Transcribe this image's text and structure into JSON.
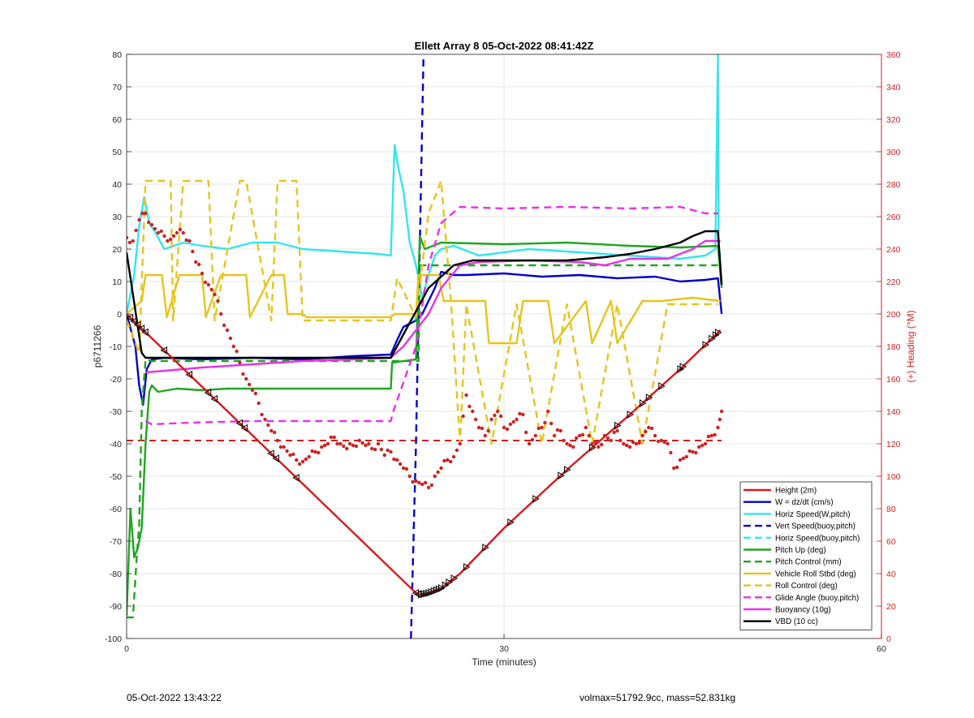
{
  "chart_data": {
    "type": "line",
    "title": "Ellett Array 8 05-Oct-2022 08:41:42Z",
    "xlabel": "Time (minutes)",
    "ylabel": "p6711266",
    "y2label": "(+) Heading (°M)",
    "xlim": [
      0,
      60
    ],
    "ylim": [
      -100,
      80
    ],
    "y2lim": [
      0,
      360
    ],
    "xticks": [
      0,
      30,
      60
    ],
    "yticks": [
      -100,
      -90,
      -80,
      -70,
      -60,
      -50,
      -40,
      -30,
      -20,
      -10,
      0,
      10,
      20,
      30,
      40,
      50,
      60,
      70,
      80
    ],
    "y2ticks": [
      0,
      20,
      40,
      60,
      80,
      100,
      120,
      140,
      160,
      180,
      200,
      220,
      240,
      260,
      280,
      300,
      320,
      340,
      360
    ],
    "grid": true,
    "legend_position": "bottom-right",
    "colors": {
      "red": "#d7191c",
      "blue": "#0000cc",
      "cyan": "#33e5f0",
      "green": "#1fa51f",
      "yellow": "#e6c41e",
      "magenta": "#e633e6",
      "black": "#000000",
      "heading": "#cc2222",
      "right_axis": "#cc2222"
    },
    "series": [
      {
        "name": "Height (2m)",
        "color": "red",
        "dash": false,
        "x": [
          0.0,
          23.0,
          23.3,
          24.0,
          25.0,
          26.5,
          30.0,
          35.0,
          40.0,
          44.0,
          47.2
        ],
        "y": [
          0,
          -86,
          -86.5,
          -86,
          -84.5,
          -80,
          -66,
          -48,
          -31,
          -17,
          -5
        ]
      },
      {
        "name": "W = dz/dt (cm/s)",
        "color": "blue",
        "dash": false,
        "x": [
          0.0,
          0.7,
          1.0,
          1.3,
          1.6,
          2.0,
          3.0,
          6.0,
          10.0,
          14.0,
          18.0,
          21.0,
          21.5,
          22.0,
          22.5,
          23.0,
          23.5,
          24.0,
          24.5,
          25.0,
          26.0,
          27.0,
          30.0,
          33.0,
          36.0,
          39.0,
          42.0,
          44.0,
          46.0,
          47.0,
          47.3
        ],
        "y": [
          0,
          -10,
          -22,
          -28,
          -17,
          -14,
          -13.5,
          -14,
          -13.5,
          -14,
          -13,
          -12.5,
          -8,
          -4,
          -3,
          -2,
          0,
          4,
          8,
          13,
          12,
          12,
          12.5,
          11.5,
          12,
          11,
          11.5,
          10,
          10.5,
          11,
          0
        ]
      },
      {
        "name": "Horiz Speed(W,pitch)",
        "color": "cyan",
        "dash": false,
        "x": [
          0.0,
          0.6,
          1.0,
          1.4,
          1.8,
          2.3,
          3.0,
          4.5,
          6.0,
          8.0,
          10.0,
          12.0,
          14.0,
          16.0,
          18.0,
          20.0,
          21.0,
          21.3,
          21.6,
          22.0,
          22.5,
          23.0,
          23.5,
          24.0,
          24.5,
          25.0,
          26.0,
          28.0,
          32.0,
          36.0,
          40.0,
          44.0,
          46.0,
          46.8,
          47.0,
          47.05,
          47.2
        ],
        "y": [
          0,
          12,
          27,
          36,
          28,
          25,
          20,
          22,
          21,
          20,
          22,
          22,
          20,
          19.5,
          19,
          18.5,
          18,
          52,
          45,
          38,
          22,
          15,
          5,
          12,
          18,
          20,
          21,
          18,
          20,
          19,
          18,
          17,
          18,
          20,
          80,
          20,
          18
        ]
      },
      {
        "name": "Vert Speed(buoy,pitch)",
        "color": "blue",
        "dash": true,
        "x": [
          22.6,
          23.0,
          23.2,
          23.4,
          23.6
        ],
        "y": [
          -100,
          -40,
          0,
          40,
          80
        ]
      },
      {
        "name": "Horiz Speed(buoy,pitch)",
        "color": "cyan",
        "dash": true,
        "x": [
          22.9,
          23.2
        ],
        "y": [
          -2,
          2
        ]
      },
      {
        "name": "Pitch Up (deg)",
        "color": "green",
        "dash": false,
        "x": [
          0.0,
          0.3,
          0.6,
          0.9,
          1.2,
          1.5,
          1.8,
          2.0,
          2.5,
          4.0,
          6.0,
          8.0,
          12.0,
          16.0,
          20.0,
          21.0,
          21.1,
          23.0,
          23.3,
          23.7,
          25.0,
          30.0,
          35.0,
          40.0,
          44.0,
          47.0,
          47.3
        ],
        "y": [
          -93,
          -60,
          -75,
          -72,
          -66,
          -40,
          -24,
          -22,
          -24,
          -23,
          -23.5,
          -23,
          -23,
          -23,
          -23,
          -23,
          -15,
          -14,
          24,
          20,
          22,
          21.5,
          22,
          21,
          20.5,
          21,
          8
        ]
      },
      {
        "name": "Pitch Control (mm)",
        "color": "green",
        "dash": true,
        "x": [
          0.0,
          0.5,
          0.8,
          1.0,
          1.2,
          1.5,
          2.0,
          23.2,
          23.3,
          47.0
        ],
        "y": [
          -93.5,
          -93.5,
          -75,
          -65,
          -30,
          -14,
          -14.5,
          -14.5,
          15,
          15
        ]
      },
      {
        "name": "Vehicle Roll Stbd (deg)",
        "color": "yellow",
        "dash": false,
        "x": [
          0.0,
          1.2,
          1.5,
          2.8,
          3.2,
          4.2,
          6.0,
          6.3,
          7.5,
          9.5,
          9.8,
          11.5,
          12.5,
          12.8,
          14.0,
          14.3,
          21.0,
          21.3,
          23.0,
          23.2,
          24.8,
          25.2,
          26.0,
          28.5,
          28.8,
          31.0,
          31.5,
          33.5,
          34.0,
          36.5,
          37.0,
          38.5,
          39.0,
          41.0,
          42.5,
          45.0,
          47.2
        ],
        "y": [
          0,
          4,
          12,
          12,
          -1,
          12,
          12,
          -1,
          12,
          12,
          -1,
          12,
          12,
          0,
          0,
          -1,
          -1,
          0,
          0,
          12,
          12,
          4,
          4,
          4,
          -9,
          -9,
          4,
          4,
          -9,
          4,
          -9,
          4,
          -9,
          4,
          4,
          5,
          4
        ]
      },
      {
        "name": "Roll Control (deg)",
        "color": "yellow",
        "dash": true,
        "x": [
          0.0,
          1.0,
          1.5,
          3.5,
          3.7,
          4.5,
          6.5,
          7.0,
          9.0,
          9.5,
          11.5,
          12.0,
          13.5,
          14.0,
          21.0,
          21.5,
          23.0,
          24.0,
          25.0,
          25.8,
          26.5,
          27.0,
          29.0,
          31.0,
          33.0,
          35.0,
          37.0,
          39.0,
          41.0,
          43.0,
          47.0
        ],
        "y": [
          -2,
          -12,
          41,
          41,
          -2,
          41,
          41,
          -2,
          41,
          41,
          -2,
          41,
          41,
          -2,
          -2,
          11,
          -1,
          31,
          41,
          3,
          -40,
          3,
          -40,
          3,
          -40,
          3,
          -40,
          3,
          -40,
          3,
          3
        ]
      },
      {
        "name": "Glide Angle (buoy,pitch)",
        "color": "magenta",
        "dash": true,
        "x": [
          1.5,
          2.0,
          5.0,
          10.0,
          15.0,
          20.0,
          21.0,
          21.2,
          23.0,
          24.0,
          25.0,
          26.5,
          30.0,
          35.0,
          40.0,
          44.0,
          46.0,
          47.0
        ],
        "y": [
          -33,
          -34,
          -33.5,
          -33,
          -33,
          -33,
          -33,
          -30,
          -10,
          15,
          28,
          33,
          32.5,
          33,
          32.5,
          33,
          31,
          31
        ]
      },
      {
        "name": "Buoyancy (10g)",
        "color": "magenta",
        "dash": false,
        "x": [
          1.5,
          3.0,
          6.0,
          10.0,
          14.0,
          18.0,
          21.0,
          22.0,
          23.0,
          24.0,
          25.0,
          26.5,
          28.0,
          32.0,
          36.0,
          38.0,
          40.0,
          43.0,
          45.0,
          46.0,
          47.2
        ],
        "y": [
          -18,
          -17.5,
          -16.5,
          -15.5,
          -14.5,
          -14,
          -13.5,
          -10,
          -5,
          0,
          8,
          15,
          16,
          16.5,
          16,
          15,
          17,
          17,
          20,
          22.5,
          22.5
        ]
      },
      {
        "name": "VBD (10 cc)",
        "color": "black",
        "dash": false,
        "x": [
          0.0,
          1.2,
          1.5,
          21.0,
          24.0,
          26.0,
          27.5,
          30.0,
          35.0,
          38.0,
          40.0,
          42.0,
          44.0,
          45.0,
          46.0,
          47.0,
          47.3
        ],
        "y": [
          19,
          -12,
          -13.5,
          -13.5,
          8,
          15,
          16.5,
          16.5,
          16.5,
          17.5,
          18.5,
          20,
          22,
          24,
          25.5,
          25.5,
          9
        ]
      }
    ],
    "heading": {
      "name": "Heading (°M)",
      "axis": "right",
      "x": [
        0.0,
        0.5,
        1.0,
        1.5,
        2.0,
        2.5,
        3.0,
        3.5,
        4.0,
        4.5,
        5.0,
        5.5,
        6.0,
        6.5,
        7.0,
        7.5,
        8.0,
        8.5,
        9.0,
        9.5,
        10.0,
        10.5,
        11.0,
        11.5,
        12.0,
        12.5,
        13.0,
        13.5,
        14.0,
        14.5,
        15.0,
        15.5,
        16.0,
        16.5,
        17.0,
        17.5,
        18.0,
        18.5,
        19.0,
        19.5,
        20.0,
        20.5,
        21.0,
        21.5,
        22.0,
        22.5,
        23.0,
        23.5,
        24.0,
        24.5,
        25.0,
        25.5,
        26.0,
        26.5,
        27.0,
        27.5,
        28.0,
        28.5,
        29.0,
        29.5,
        30.0,
        30.5,
        31.0,
        31.5,
        32.0,
        32.5,
        33.0,
        33.5,
        34.0,
        34.5,
        35.0,
        35.5,
        36.0,
        36.5,
        37.0,
        37.5,
        38.0,
        38.5,
        39.0,
        39.5,
        40.0,
        40.5,
        41.0,
        41.5,
        42.0,
        42.5,
        43.0,
        43.5,
        44.0,
        44.5,
        45.0,
        45.5,
        46.0,
        46.5,
        47.0,
        47.3
      ],
      "y": [
        247,
        245,
        258,
        262,
        255,
        250,
        248,
        246,
        250,
        250,
        245,
        232,
        225,
        218,
        212,
        200,
        190,
        180,
        170,
        160,
        153,
        145,
        135,
        128,
        122,
        118,
        113,
        110,
        109,
        112,
        115,
        118,
        120,
        124,
        120,
        117,
        119,
        122,
        119,
        117,
        120,
        113,
        115,
        110,
        105,
        100,
        97,
        95,
        93,
        100,
        105,
        110,
        112,
        120,
        150,
        140,
        130,
        125,
        135,
        140,
        130,
        132,
        135,
        138,
        120,
        125,
        130,
        140,
        125,
        128,
        120,
        118,
        125,
        130,
        120,
        118,
        125,
        122,
        128,
        120,
        118,
        120,
        125,
        130,
        125,
        122,
        120,
        105,
        110,
        112,
        115,
        118,
        120,
        125,
        130,
        140
      ]
    },
    "reference_line": {
      "name": "Heading reference",
      "axis": "right",
      "y": 122,
      "x": [
        0.0,
        47.3
      ],
      "color": "red",
      "dash": true
    },
    "legend": [
      "Height (2m)",
      "W = dz/dt (cm/s)",
      "Horiz Speed(W,pitch)",
      "Vert Speed(buoy,pitch)",
      "Horiz Speed(buoy,pitch)",
      "Pitch Up (deg)",
      "Pitch Control (mm)",
      "Vehicle Roll Stbd (deg)",
      "Roll Control (deg)",
      "Glide Angle (buoy,pitch)",
      "Buoyancy (10g)",
      "VBD (10 cc)"
    ]
  },
  "footer": {
    "timestamp": "05-Oct-2022 13:43:22",
    "vehicle_info": "volmax=51792.9cc, mass=52.831kg"
  }
}
